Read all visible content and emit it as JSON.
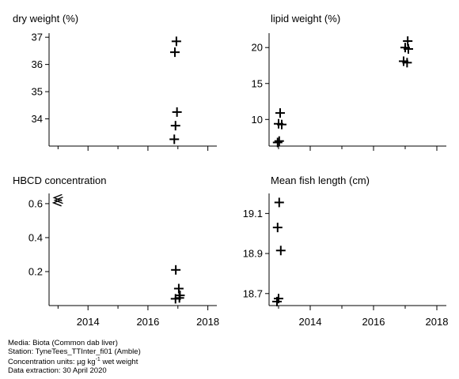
{
  "chart_data": [
    {
      "type": "scatter",
      "title": "dry weight (%)",
      "xlim": [
        2012.7,
        2018.3
      ],
      "ylim": [
        33.0,
        37.15
      ],
      "yticks": [
        34,
        35,
        36,
        37
      ],
      "xticks": [
        2014,
        2016,
        2018
      ],
      "show_xtick_labels": false,
      "points": [
        {
          "x": 2016.95,
          "y": 36.85
        },
        {
          "x": 2016.9,
          "y": 36.45
        },
        {
          "x": 2016.97,
          "y": 34.25
        },
        {
          "x": 2016.92,
          "y": 33.75
        },
        {
          "x": 2016.88,
          "y": 33.25
        }
      ],
      "less_than_points": []
    },
    {
      "type": "scatter",
      "title": "lipid weight (%)",
      "xlim": [
        2012.7,
        2018.3
      ],
      "ylim": [
        6.3,
        22.0
      ],
      "yticks": [
        10,
        15,
        20
      ],
      "xticks": [
        2014,
        2016,
        2018
      ],
      "show_xtick_labels": false,
      "points": [
        {
          "x": 2013.05,
          "y": 10.9
        },
        {
          "x": 2013.0,
          "y": 9.4
        },
        {
          "x": 2013.1,
          "y": 9.3
        },
        {
          "x": 2013.02,
          "y": 7.0
        },
        {
          "x": 2012.97,
          "y": 6.8
        },
        {
          "x": 2017.08,
          "y": 20.9
        },
        {
          "x": 2017.0,
          "y": 20.0
        },
        {
          "x": 2017.1,
          "y": 19.8
        },
        {
          "x": 2016.95,
          "y": 18.1
        },
        {
          "x": 2017.06,
          "y": 17.9
        }
      ],
      "less_than_points": []
    },
    {
      "type": "scatter",
      "title": "HBCD concentration",
      "xlim": [
        2012.7,
        2018.3
      ],
      "ylim": [
        0.0,
        0.66
      ],
      "yticks": [
        0.2,
        0.4,
        0.6
      ],
      "xticks": [
        2014,
        2016,
        2018
      ],
      "show_xtick_labels": true,
      "points": [
        {
          "x": 2016.93,
          "y": 0.21
        },
        {
          "x": 2017.03,
          "y": 0.1
        },
        {
          "x": 2017.07,
          "y": 0.06
        },
        {
          "x": 2016.92,
          "y": 0.04
        },
        {
          "x": 2017.05,
          "y": 0.045
        }
      ],
      "less_than_points": [
        {
          "x": 2013.0,
          "y": 0.635
        },
        {
          "x": 2013.03,
          "y": 0.62
        },
        {
          "x": 2012.98,
          "y": 0.605
        }
      ]
    },
    {
      "type": "scatter",
      "title": "Mean fish length (cm)",
      "xlim": [
        2012.7,
        2018.3
      ],
      "ylim": [
        18.64,
        19.2
      ],
      "yticks": [
        18.7,
        18.9,
        19.1
      ],
      "xticks": [
        2014,
        2016,
        2018
      ],
      "show_xtick_labels": true,
      "points": [
        {
          "x": 2013.02,
          "y": 19.155
        },
        {
          "x": 2012.97,
          "y": 19.03
        },
        {
          "x": 2013.07,
          "y": 18.915
        },
        {
          "x": 2013.0,
          "y": 18.675
        },
        {
          "x": 2012.95,
          "y": 18.66
        }
      ],
      "less_than_points": []
    }
  ],
  "footer": {
    "media": "Media: Biota (Common dab liver)",
    "station": "Station: TyneTees_TTInter_fi01 (Amble)",
    "units_prefix": "Concentration units:  µg kg",
    "units_exponent": "-1",
    "units_suffix": " wet weight",
    "extraction": "Data extraction: 30 April 2020"
  }
}
